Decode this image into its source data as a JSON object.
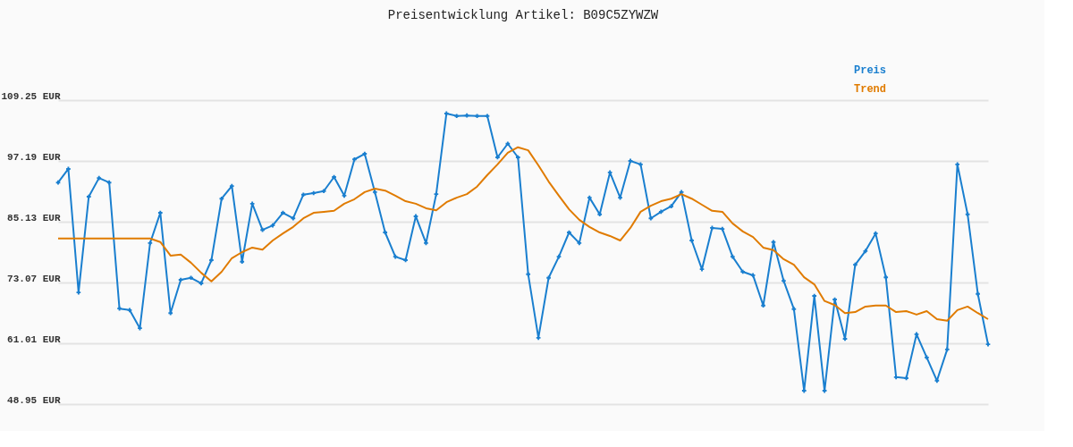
{
  "chart_data": {
    "type": "line",
    "title": "Preisentwicklung Artikel: B09C5ZYWZW",
    "categories": [
      null,
      null,
      null,
      null,
      null,
      null,
      null,
      null,
      null,
      null,
      null,
      null,
      null,
      null,
      null,
      null,
      null,
      null,
      null,
      null,
      null,
      null,
      null,
      null,
      null,
      null,
      null,
      null,
      null,
      null,
      null,
      null,
      null,
      null,
      null,
      null,
      null,
      null,
      null,
      null,
      null,
      null,
      null,
      null,
      null,
      null,
      null,
      null,
      null,
      null,
      null,
      null,
      null,
      null,
      null,
      null,
      null,
      null,
      null,
      null,
      null,
      null,
      null,
      null,
      null,
      null,
      null,
      null,
      null,
      null,
      null,
      null,
      null,
      null,
      null,
      null,
      null,
      null,
      null,
      null,
      null,
      null,
      null,
      null,
      null,
      null,
      null,
      null,
      null,
      null,
      null,
      null
    ],
    "series": [
      {
        "name": "Preis",
        "color": "#1a7fcf",
        "marker": "cross",
        "values": [
          92.9,
          95.6,
          71.1,
          90.1,
          93.8,
          92.9,
          67.9,
          67.6,
          64.0,
          80.9,
          86.9,
          67.0,
          73.6,
          74.0,
          72.9,
          77.5,
          89.7,
          92.2,
          77.2,
          88.7,
          83.5,
          84.4,
          86.9,
          85.8,
          90.5,
          90.8,
          91.2,
          94.0,
          90.3,
          97.5,
          98.6,
          91.0,
          83.0,
          78.2,
          77.5,
          86.2,
          80.9,
          90.6,
          106.6,
          106.1,
          106.2,
          106.1,
          106.1,
          97.9,
          100.6,
          97.9,
          74.7,
          62.1,
          74.0,
          78.2,
          83.0,
          80.9,
          89.9,
          86.6,
          94.9,
          89.9,
          97.2,
          96.5,
          85.8,
          87.1,
          88.2,
          91.0,
          81.4,
          75.7,
          83.9,
          83.7,
          78.2,
          75.2,
          74.5,
          68.5,
          81.1,
          73.4,
          67.8,
          51.6,
          70.4,
          51.6,
          69.7,
          61.9,
          76.6,
          79.3,
          82.8,
          74.1,
          54.3,
          54.1,
          62.8,
          58.2,
          53.6,
          59.8,
          96.5,
          86.6,
          70.8,
          60.8
        ]
      },
      {
        "name": "Trend",
        "color": "#e07b00",
        "marker": "none",
        "values": [
          81.8,
          81.8,
          81.8,
          81.8,
          81.8,
          81.8,
          81.8,
          81.8,
          81.8,
          81.8,
          81.1,
          78.4,
          78.6,
          77.0,
          75.0,
          73.3,
          75.2,
          77.9,
          79.1,
          80.0,
          79.6,
          81.4,
          82.8,
          84.1,
          85.8,
          86.9,
          87.1,
          87.3,
          88.7,
          89.6,
          91.0,
          91.7,
          91.3,
          90.3,
          89.2,
          88.7,
          87.8,
          87.4,
          89.0,
          89.9,
          90.6,
          92.1,
          94.4,
          96.5,
          98.8,
          99.9,
          99.3,
          96.3,
          93.1,
          90.3,
          87.6,
          85.5,
          84.1,
          83.0,
          82.3,
          81.4,
          83.9,
          87.1,
          88.3,
          89.2,
          89.7,
          90.6,
          89.7,
          88.5,
          87.3,
          87.1,
          84.8,
          83.2,
          82.1,
          80.0,
          79.5,
          77.7,
          76.6,
          74.1,
          72.7,
          69.4,
          68.6,
          67.0,
          67.2,
          68.3,
          68.5,
          68.5,
          67.2,
          67.4,
          66.7,
          67.4,
          65.8,
          65.5,
          67.6,
          68.3,
          67.0,
          65.8
        ]
      }
    ],
    "ylim": [
      48.95,
      109.25
    ],
    "yticks": [
      {
        "value": 48.95,
        "label": "48.95 EUR"
      },
      {
        "value": 61.01,
        "label": "61.01 EUR"
      },
      {
        "value": 73.07,
        "label": "73.07 EUR"
      },
      {
        "value": 85.13,
        "label": "85.13 EUR"
      },
      {
        "value": 97.19,
        "label": "97.19 EUR"
      },
      {
        "value": 109.25,
        "label": "109.25 EUR"
      }
    ],
    "tick_labels": "y",
    "grid": "y",
    "legend": "top right",
    "line_style": "solid"
  }
}
